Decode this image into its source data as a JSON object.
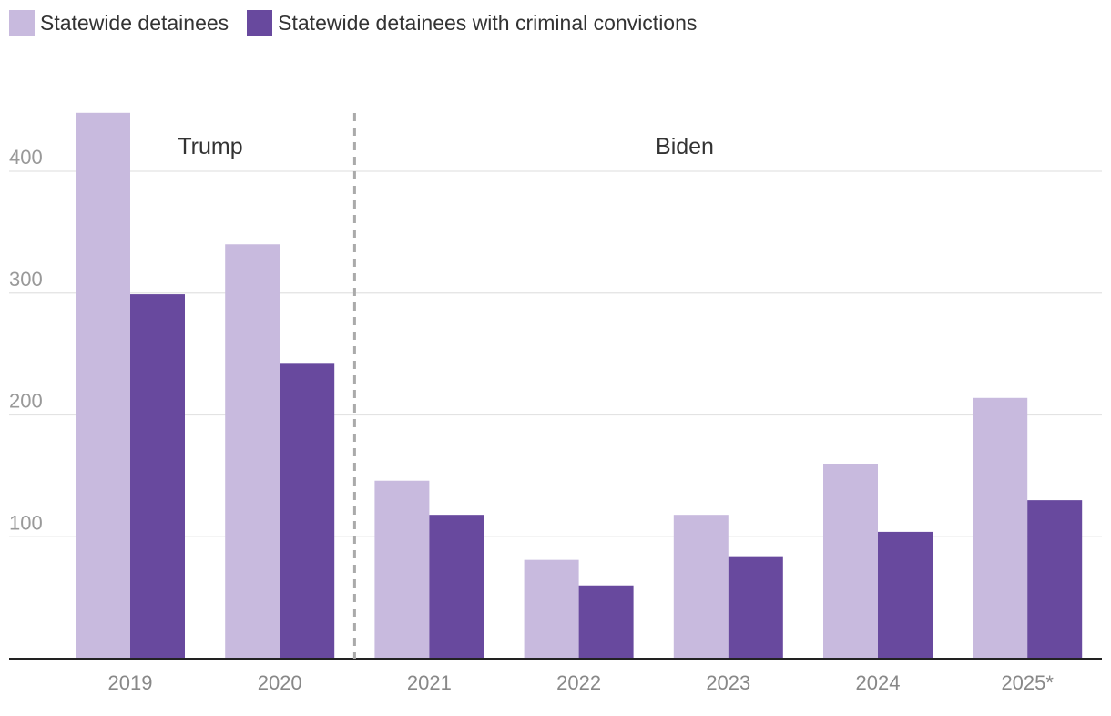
{
  "legend": {
    "items": [
      {
        "label": "Statewide detainees",
        "color": "#c8bade"
      },
      {
        "label": "Statewide detainees with criminal convictions",
        "color": "#68499e"
      }
    ]
  },
  "chart_data": {
    "type": "bar",
    "categories": [
      "2019",
      "2020",
      "2021",
      "2022",
      "2023",
      "2024",
      "2025*"
    ],
    "series": [
      {
        "name": "Statewide detainees",
        "color": "#c8bade",
        "values": [
          448,
          340,
          146,
          81,
          118,
          160,
          214
        ]
      },
      {
        "name": "Statewide detainees with criminal convictions",
        "color": "#68499e",
        "values": [
          299,
          242,
          118,
          60,
          84,
          104,
          130
        ]
      }
    ],
    "ylim": [
      0,
      450
    ],
    "yticks": [
      100,
      200,
      300,
      400
    ],
    "grid": true,
    "xlabel": "",
    "ylabel": "",
    "annotations": [
      {
        "label": "Trump"
      },
      {
        "label": "Biden"
      }
    ],
    "divider_between": [
      "2020",
      "2021"
    ]
  }
}
